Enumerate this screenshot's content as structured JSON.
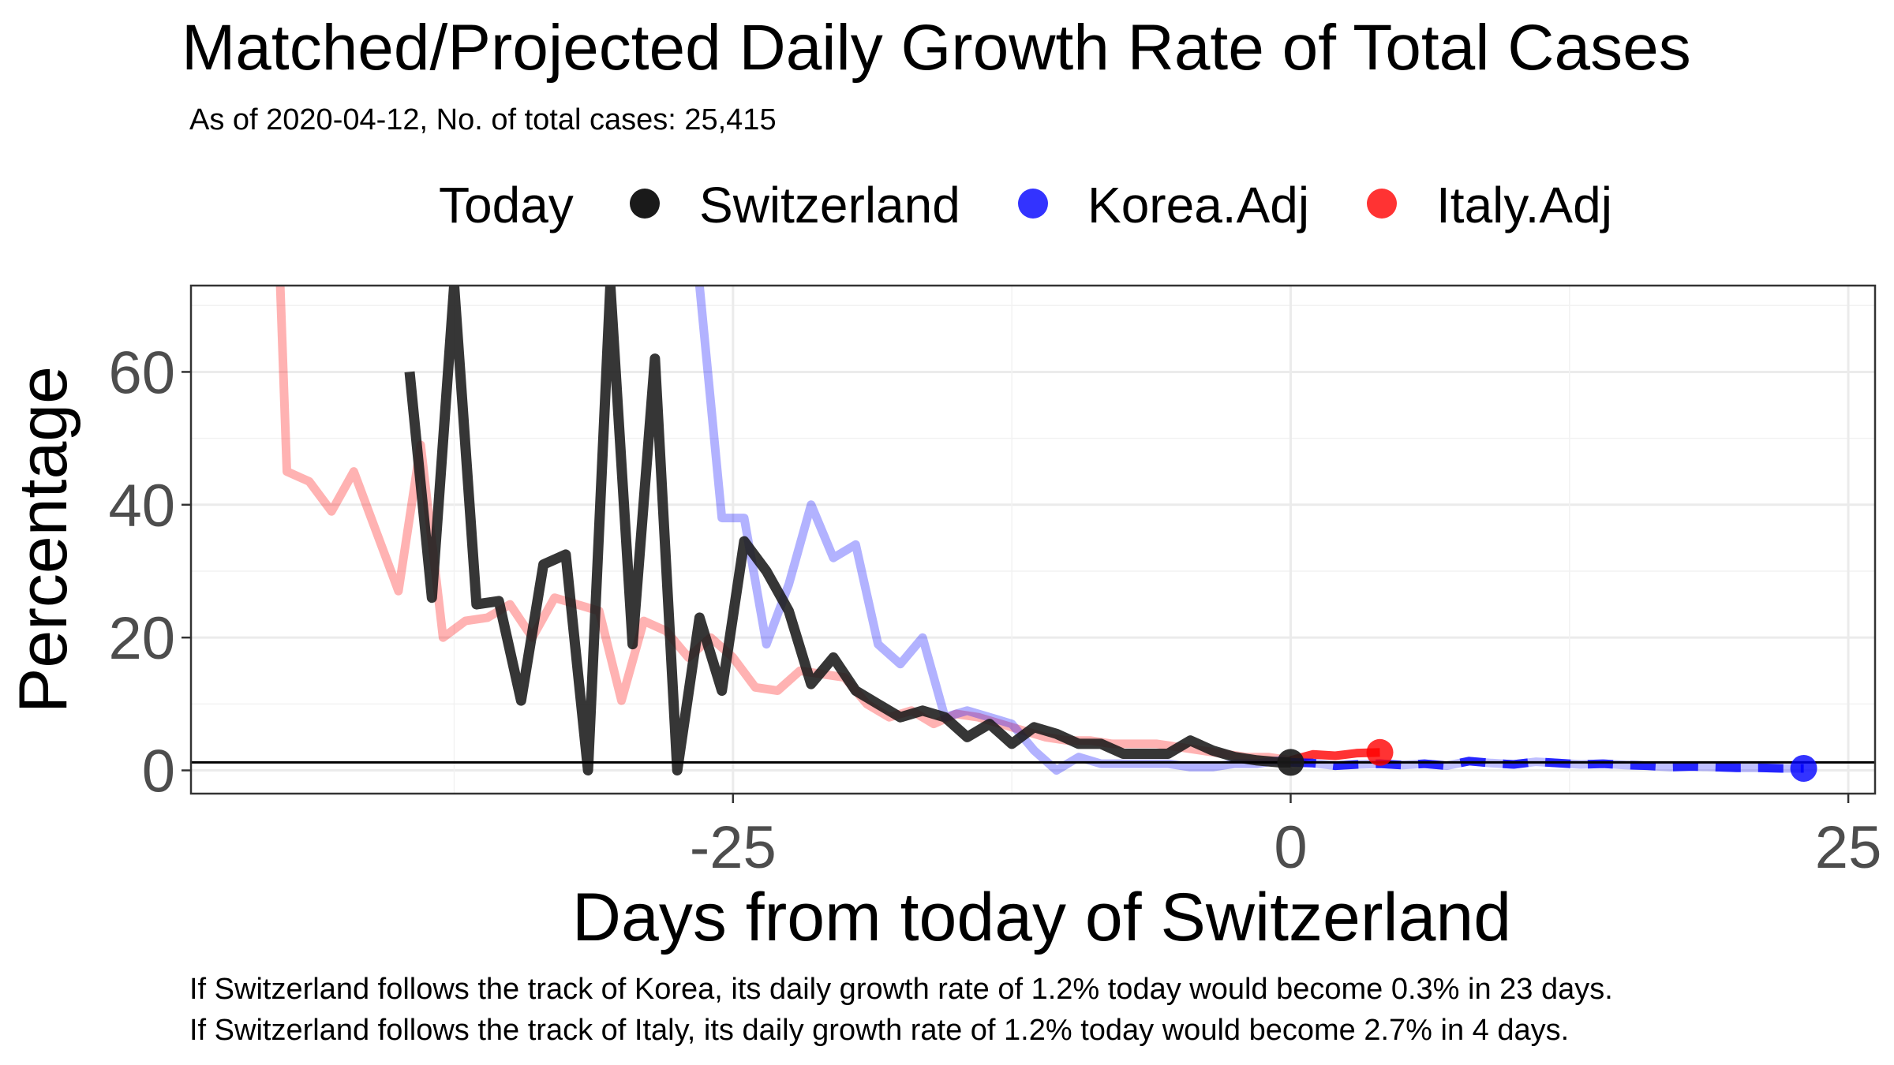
{
  "chart_data": {
    "type": "line",
    "title": "Matched/Projected Daily Growth Rate of Total Cases",
    "subtitle": "As of 2020-04-12, No. of total cases: 25,415",
    "xlabel": "Days from today of Switzerland",
    "ylabel": "Percentage",
    "xlim": [
      -49.3,
      26.2
    ],
    "ylim": [
      -3.5,
      73
    ],
    "x_ticks": [
      -25,
      0,
      25
    ],
    "x_tick_labels": [
      "-25",
      "0",
      "25"
    ],
    "y_ticks": [
      0,
      20,
      40,
      60
    ],
    "y_tick_labels": [
      "0",
      "20",
      "40",
      "60"
    ],
    "grid": true,
    "reference_line_y": 1.2,
    "legend": {
      "position": "top",
      "title": "Today",
      "entries": [
        {
          "label": "Switzerland",
          "color": "#1a1a1a"
        },
        {
          "label": "Korea.Adj",
          "color": "#0000ff"
        },
        {
          "label": "Italy.Adj",
          "color": "#ff0000"
        }
      ]
    },
    "series": [
      {
        "name": "Italy.Adj",
        "color": "#ff0000",
        "segment": "matched",
        "x": [
          -45.3,
          -45.0,
          -44.0,
          -43.0,
          -42.0,
          -41.0,
          -40.0,
          -39.0,
          -38.0,
          -37.0,
          -36.0,
          -35.0,
          -34.0,
          -33.0,
          -32.0,
          -31.0,
          -30.0,
          -29.0,
          -28.0,
          -27.0,
          -26.0,
          -25.0,
          -24.0,
          -23.0,
          -22.0,
          -21.0,
          -20.0,
          -19.0,
          -18.0,
          -17.0,
          -16.0,
          -15.0,
          -14.0,
          -13.0,
          -12.0,
          -11.0,
          -10.0,
          -9.0,
          -8.0,
          -7.0,
          -6.0,
          -5.0,
          -4.0,
          -3.0,
          -2.0,
          -1.0,
          0.0
        ],
        "y": [
          73,
          45,
          43.5,
          39,
          45,
          36,
          27,
          49,
          20,
          22.5,
          23,
          25,
          20,
          26,
          25,
          24,
          10.5,
          22.5,
          21,
          17,
          20,
          17,
          12.5,
          12,
          15,
          14.5,
          14,
          10,
          8,
          9,
          7,
          8.5,
          8,
          7,
          6,
          5,
          4.5,
          4.5,
          4,
          4,
          4,
          3.5,
          3,
          2.5,
          2,
          2,
          1.5
        ]
      },
      {
        "name": "Italy.Adj",
        "color": "#ff0000",
        "segment": "projected",
        "x": [
          0.0,
          1.0,
          2.0,
          3.0,
          4.0
        ],
        "y": [
          1.5,
          2.4,
          2.2,
          2.6,
          2.7
        ]
      },
      {
        "name": "Korea.Adj",
        "color": "#0000ff",
        "segment": "matched",
        "x": [
          -26.5,
          -25.5,
          -24.5,
          -23.5,
          -22.5,
          -21.5,
          -20.5,
          -19.5,
          -18.5,
          -17.5,
          -16.5,
          -15.5,
          -14.5,
          -13.5,
          -12.5,
          -11.5,
          -10.5,
          -9.5,
          -8.5,
          -7.5,
          -6.5,
          -5.5,
          -4.5,
          -3.5,
          -2.5,
          -1.5,
          -0.5,
          0.0
        ],
        "y": [
          73,
          38,
          38,
          19,
          28,
          40,
          32,
          34,
          19,
          16,
          20,
          8,
          9,
          8,
          7,
          3,
          0,
          2,
          1,
          1,
          1,
          1,
          0.5,
          0.5,
          1,
          1,
          1.5,
          1.2
        ]
      },
      {
        "name": "Korea.Adj",
        "color": "#0000ff",
        "segment": "projected",
        "x": [
          0,
          1,
          2,
          3,
          4,
          5,
          6,
          7,
          8,
          9,
          10,
          11,
          12,
          13,
          14,
          15,
          16,
          17,
          18,
          19,
          20,
          21,
          22,
          23
        ],
        "y": [
          1.2,
          1.1,
          0.7,
          0.9,
          1.0,
          0.8,
          1.0,
          0.7,
          1.4,
          1.1,
          0.9,
          1.3,
          1.1,
          0.9,
          1.0,
          0.8,
          0.7,
          0.5,
          0.6,
          0.5,
          0.4,
          0.4,
          0.3,
          0.3
        ]
      },
      {
        "name": "Switzerland",
        "color": "#1a1a1a",
        "segment": "matched",
        "x": [
          -39.5,
          -38.5,
          -37.5,
          -36.5,
          -35.5,
          -34.5,
          -33.5,
          -32.5,
          -31.5,
          -30.5,
          -29.5,
          -28.5,
          -27.5,
          -26.5,
          -25.5,
          -24.5,
          -23.5,
          -22.5,
          -21.5,
          -20.5,
          -19.5,
          -18.5,
          -17.5,
          -16.5,
          -15.5,
          -14.5,
          -13.5,
          -12.5,
          -11.5,
          -10.5,
          -9.5,
          -8.5,
          -7.5,
          -6.5,
          -5.5,
          -4.5,
          -3.5,
          -2.5,
          -1.5,
          -0.5,
          0.0
        ],
        "y": [
          60,
          26,
          73,
          25,
          25.5,
          10.5,
          31,
          32.5,
          0,
          73,
          19,
          62,
          0,
          23,
          12,
          34.5,
          30,
          24,
          13,
          17,
          12,
          10,
          8,
          9,
          8,
          5,
          7,
          4,
          6.5,
          5.5,
          4,
          4,
          2.5,
          2.5,
          2.5,
          4.5,
          3,
          2,
          1.5,
          1.2,
          1.2
        ]
      }
    ],
    "points": [
      {
        "name": "Switzerland",
        "x": 0,
        "y": 1.2,
        "color": "#1a1a1a"
      },
      {
        "name": "Italy.Adj",
        "x": 4,
        "y": 2.7,
        "color": "#ff0000"
      },
      {
        "name": "Korea.Adj",
        "x": 23,
        "y": 0.3,
        "color": "#0000ff"
      }
    ],
    "captions": [
      "If Switzerland follows the track of Korea, its daily growth rate of 1.2% today would become 0.3% in 23 days.",
      "If Switzerland follows the track of Italy, its daily growth rate of 1.2% today would become 2.7% in 4 days."
    ]
  }
}
